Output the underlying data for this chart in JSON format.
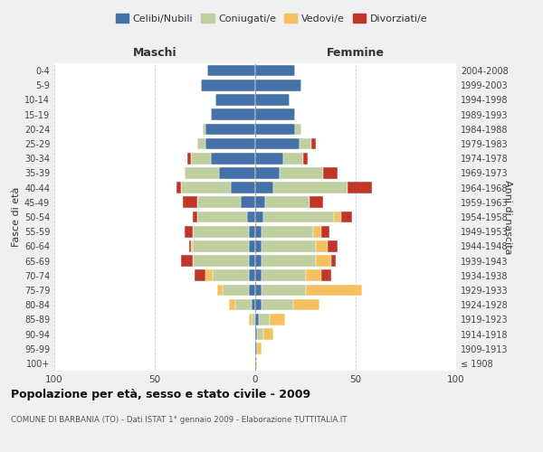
{
  "age_groups": [
    "100+",
    "95-99",
    "90-94",
    "85-89",
    "80-84",
    "75-79",
    "70-74",
    "65-69",
    "60-64",
    "55-59",
    "50-54",
    "45-49",
    "40-44",
    "35-39",
    "30-34",
    "25-29",
    "20-24",
    "15-19",
    "10-14",
    "5-9",
    "0-4"
  ],
  "birth_years": [
    "≤ 1908",
    "1909-1913",
    "1914-1918",
    "1919-1923",
    "1924-1928",
    "1929-1933",
    "1934-1938",
    "1939-1943",
    "1944-1948",
    "1949-1953",
    "1954-1958",
    "1959-1963",
    "1964-1968",
    "1969-1973",
    "1974-1978",
    "1979-1983",
    "1984-1988",
    "1989-1993",
    "1994-1998",
    "1999-2003",
    "2004-2008"
  ],
  "colors": {
    "celibi": "#4472a8",
    "coniugati": "#bfcfa0",
    "vedovi": "#f5c060",
    "divorziati": "#c0372a"
  },
  "male": {
    "celibi": [
      0,
      0,
      0,
      0,
      2,
      3,
      3,
      3,
      3,
      3,
      4,
      7,
      12,
      18,
      22,
      25,
      25,
      22,
      20,
      27,
      24
    ],
    "coniugati": [
      0,
      0,
      0,
      2,
      8,
      13,
      18,
      28,
      28,
      28,
      25,
      22,
      25,
      17,
      10,
      4,
      1,
      0,
      0,
      0,
      0
    ],
    "vedovi": [
      0,
      0,
      0,
      1,
      3,
      3,
      4,
      0,
      1,
      0,
      0,
      0,
      0,
      0,
      0,
      0,
      0,
      0,
      0,
      0,
      0
    ],
    "divorziati": [
      0,
      0,
      0,
      0,
      0,
      0,
      5,
      6,
      1,
      4,
      2,
      7,
      2,
      0,
      2,
      0,
      0,
      0,
      0,
      0,
      0
    ]
  },
  "female": {
    "celibi": [
      0,
      1,
      1,
      2,
      3,
      3,
      3,
      3,
      3,
      3,
      4,
      5,
      9,
      12,
      14,
      22,
      20,
      20,
      17,
      23,
      20
    ],
    "coniugati": [
      0,
      0,
      3,
      5,
      16,
      22,
      22,
      27,
      27,
      26,
      35,
      22,
      37,
      22,
      10,
      6,
      3,
      0,
      0,
      0,
      0
    ],
    "vedovi": [
      1,
      2,
      5,
      8,
      13,
      28,
      8,
      8,
      6,
      4,
      4,
      0,
      0,
      0,
      0,
      0,
      0,
      0,
      0,
      0,
      0
    ],
    "divorziati": [
      0,
      0,
      0,
      0,
      0,
      0,
      5,
      2,
      5,
      4,
      5,
      7,
      12,
      7,
      2,
      2,
      0,
      0,
      0,
      0,
      0
    ]
  },
  "xlim": 100,
  "title": "Popolazione per età, sesso e stato civile - 2009",
  "subtitle": "COMUNE DI BARBANIA (TO) - Dati ISTAT 1° gennaio 2009 - Elaborazione TUTTITALIA.IT",
  "xlabel_left": "Maschi",
  "xlabel_right": "Femmine",
  "ylabel_left": "Fasce di età",
  "ylabel_right": "Anni di nascita",
  "legend_labels": [
    "Celibi/Nubili",
    "Coniugati/e",
    "Vedovi/e",
    "Divorziati/e"
  ],
  "background_color": "#f0f0f0",
  "plot_background": "#ffffff"
}
